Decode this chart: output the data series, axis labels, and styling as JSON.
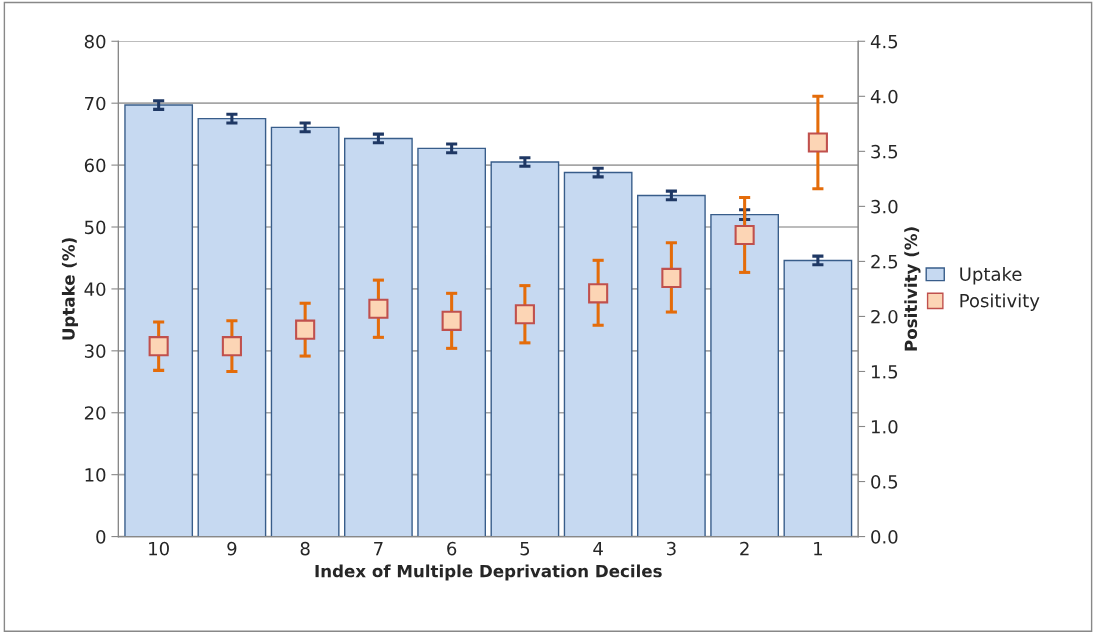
{
  "chart_data": {
    "type": "bar",
    "xlabel": "Index of Multiple Deprivation Deciles",
    "ylabel": "Uptake (%)",
    "y2label": "Positivity (%)",
    "categories": [
      "10",
      "9",
      "8",
      "7",
      "6",
      "5",
      "4",
      "3",
      "2",
      "1"
    ],
    "series": [
      {
        "name": "Uptake",
        "color": "#c6d9f1",
        "values": [
          69.7,
          67.5,
          66.1,
          64.3,
          62.7,
          60.5,
          58.8,
          55.1,
          52.0,
          44.6
        ],
        "errors": [
          0.7,
          0.7,
          0.7,
          0.7,
          0.7,
          0.7,
          0.7,
          0.7,
          0.8,
          0.7
        ]
      },
      {
        "name": "Positivity",
        "type": "scatter",
        "axis": "y2",
        "marker": "square",
        "color": "#fcd5b5",
        "values": [
          1.73,
          1.73,
          1.88,
          2.07,
          1.96,
          2.02,
          2.21,
          2.35,
          2.74,
          3.58
        ],
        "errors": [
          [
            1.51,
            1.95
          ],
          [
            1.5,
            1.96
          ],
          [
            1.64,
            2.12
          ],
          [
            1.81,
            2.33
          ],
          [
            1.71,
            2.21
          ],
          [
            1.76,
            2.28
          ],
          [
            1.92,
            2.51
          ],
          [
            2.04,
            2.67
          ],
          [
            2.4,
            3.08
          ],
          [
            3.16,
            4.0
          ]
        ]
      }
    ],
    "ylim": [
      0,
      80
    ],
    "yticks": [
      0,
      10,
      20,
      30,
      40,
      50,
      60,
      70,
      80
    ],
    "y2lim": [
      0,
      4.5
    ],
    "y2ticks": [
      {
        "value": 0,
        "label": "0.0"
      },
      {
        "value": 0.5,
        "label": "0.5"
      },
      {
        "value": 1,
        "label": "1.0"
      },
      {
        "value": 1.5,
        "label": "1.5"
      },
      {
        "value": 2,
        "label": "2.0"
      },
      {
        "value": 2.5,
        "label": "2.5"
      },
      {
        "value": 3,
        "label": "3.0"
      },
      {
        "value": 3.5,
        "label": "3.5"
      },
      {
        "value": 4,
        "label": "4.0"
      },
      {
        "value": 4.5,
        "label": "4.5"
      }
    ],
    "grid": "y",
    "legend": "right"
  }
}
